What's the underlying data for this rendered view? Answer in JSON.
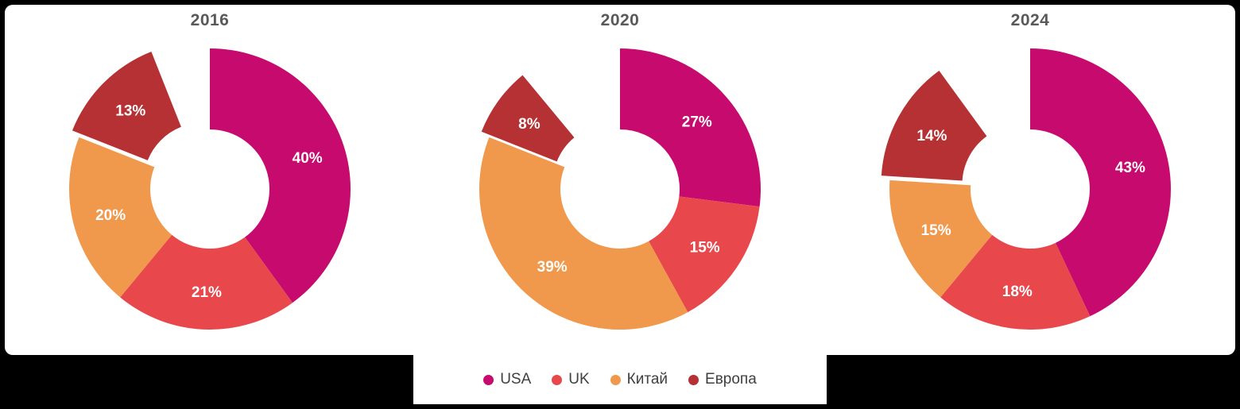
{
  "chart_data": {
    "type": "pie",
    "subtype": "donut",
    "categories": [
      "USA",
      "UK",
      "Китай",
      "Европа"
    ],
    "colors": {
      "USA": "#C60A6E",
      "UK": "#E8484C",
      "Китай": "#F0984B",
      "Европа": "#B53133"
    },
    "charts": [
      {
        "title": "2016",
        "values": [
          40,
          21,
          20,
          13
        ]
      },
      {
        "title": "2020",
        "values": [
          27,
          15,
          39,
          8
        ]
      },
      {
        "title": "2024",
        "values": [
          43,
          18,
          15,
          14
        ]
      }
    ],
    "legend": [
      "USA",
      "UK",
      "Китай",
      "Европа"
    ],
    "legend_position": "bottom",
    "exploded_category": "Европа",
    "label_format": "percent",
    "title_color": "#595959",
    "background": "#ffffff",
    "page_background": "#000000"
  }
}
